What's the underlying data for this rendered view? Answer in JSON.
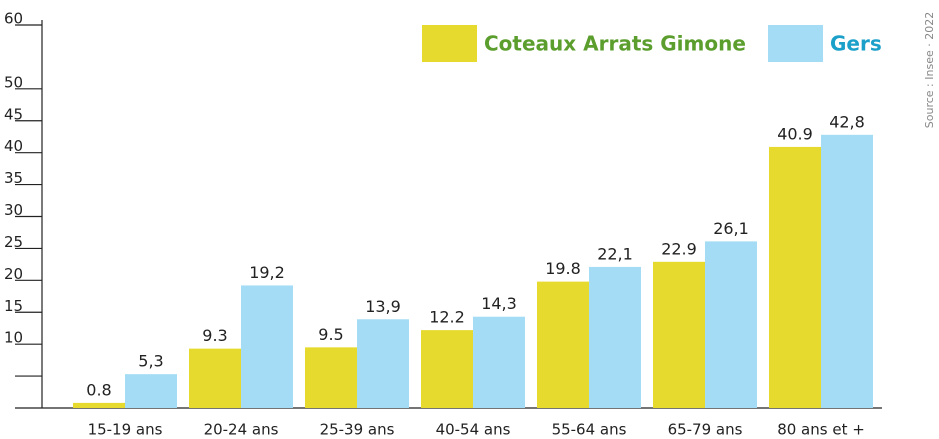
{
  "chart_data": {
    "type": "bar",
    "categories": [
      "15-19 ans",
      "20-24 ans",
      "25-39 ans",
      "40-54 ans",
      "55-64 ans",
      "65-79 ans",
      "80 ans et +"
    ],
    "series": [
      {
        "name": "Coteaux Arrats Gimone",
        "color": "#e6da2f",
        "values": [
          0.8,
          9.3,
          9.5,
          12.2,
          19.8,
          22.9,
          40.9
        ]
      },
      {
        "name": "Gers",
        "color": "#a3dcf4",
        "values": [
          5.3,
          19.2,
          13.9,
          14.3,
          22.1,
          26.1,
          42.8
        ],
        "value_labels": [
          "5,3",
          "19,2",
          "13,9",
          "14,3",
          "22,1",
          "26,1",
          "42,8"
        ]
      }
    ],
    "ylim": [
      0,
      60
    ],
    "yticks": [
      10,
      15,
      20,
      25,
      30,
      35,
      40,
      45,
      50,
      60
    ],
    "minor_yticks": [
      5
    ],
    "legend": "top-right",
    "source": "Source : Insee · 2022"
  }
}
